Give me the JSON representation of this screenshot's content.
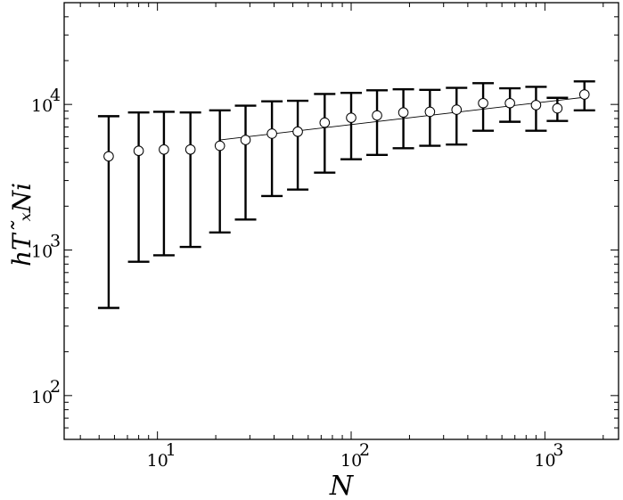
{
  "chart_data": {
    "type": "scatter",
    "xscale": "log",
    "yscale": "log",
    "xlim": [
      3.3,
      2400
    ],
    "ylim": [
      50,
      50000
    ],
    "xlabel": "N",
    "ylabel": "hT˜ₓNi",
    "x_ticks": [
      {
        "value": 10,
        "label": "10",
        "exp": "1"
      },
      {
        "value": 100,
        "label": "10",
        "exp": "2"
      },
      {
        "value": 1000,
        "label": "10",
        "exp": "3"
      }
    ],
    "y_ticks": [
      {
        "value": 100,
        "label": "10",
        "exp": "2"
      },
      {
        "value": 1000,
        "label": "10",
        "exp": "3"
      },
      {
        "value": 10000,
        "label": "10",
        "exp": "4"
      }
    ],
    "series": [
      {
        "marker": "open-circle",
        "points": [
          {
            "x": 5.6,
            "y": 4400,
            "low": 400,
            "high": 8300
          },
          {
            "x": 8,
            "y": 4800,
            "low": 830,
            "high": 8800
          },
          {
            "x": 10.8,
            "y": 4900,
            "low": 920,
            "high": 8900
          },
          {
            "x": 14.8,
            "y": 4900,
            "low": 1050,
            "high": 8800
          },
          {
            "x": 21,
            "y": 5200,
            "low": 1320,
            "high": 9100
          },
          {
            "x": 28.5,
            "y": 5700,
            "low": 1620,
            "high": 9800
          },
          {
            "x": 39,
            "y": 6300,
            "low": 2350,
            "high": 10500
          },
          {
            "x": 53,
            "y": 6500,
            "low": 2600,
            "high": 10600
          },
          {
            "x": 73,
            "y": 7500,
            "low": 3400,
            "high": 11800
          },
          {
            "x": 100,
            "y": 8100,
            "low": 4200,
            "high": 12000
          },
          {
            "x": 136,
            "y": 8400,
            "low": 4500,
            "high": 12500
          },
          {
            "x": 186,
            "y": 8800,
            "low": 5000,
            "high": 12700
          },
          {
            "x": 255,
            "y": 8900,
            "low": 5200,
            "high": 12600
          },
          {
            "x": 350,
            "y": 9200,
            "low": 5300,
            "high": 13000
          },
          {
            "x": 480,
            "y": 10200,
            "low": 6600,
            "high": 14000
          },
          {
            "x": 660,
            "y": 10200,
            "low": 7600,
            "high": 12900
          },
          {
            "x": 900,
            "y": 9900,
            "low": 6600,
            "high": 13200
          },
          {
            "x": 1160,
            "y": 9400,
            "low": 7700,
            "high": 11100
          },
          {
            "x": 1600,
            "y": 11700,
            "low": 9100,
            "high": 14400
          }
        ]
      }
    ],
    "fit_line": {
      "x": [
        21,
        1600
      ],
      "y": [
        5700,
        11200
      ]
    },
    "grid": false,
    "legend": "none"
  }
}
